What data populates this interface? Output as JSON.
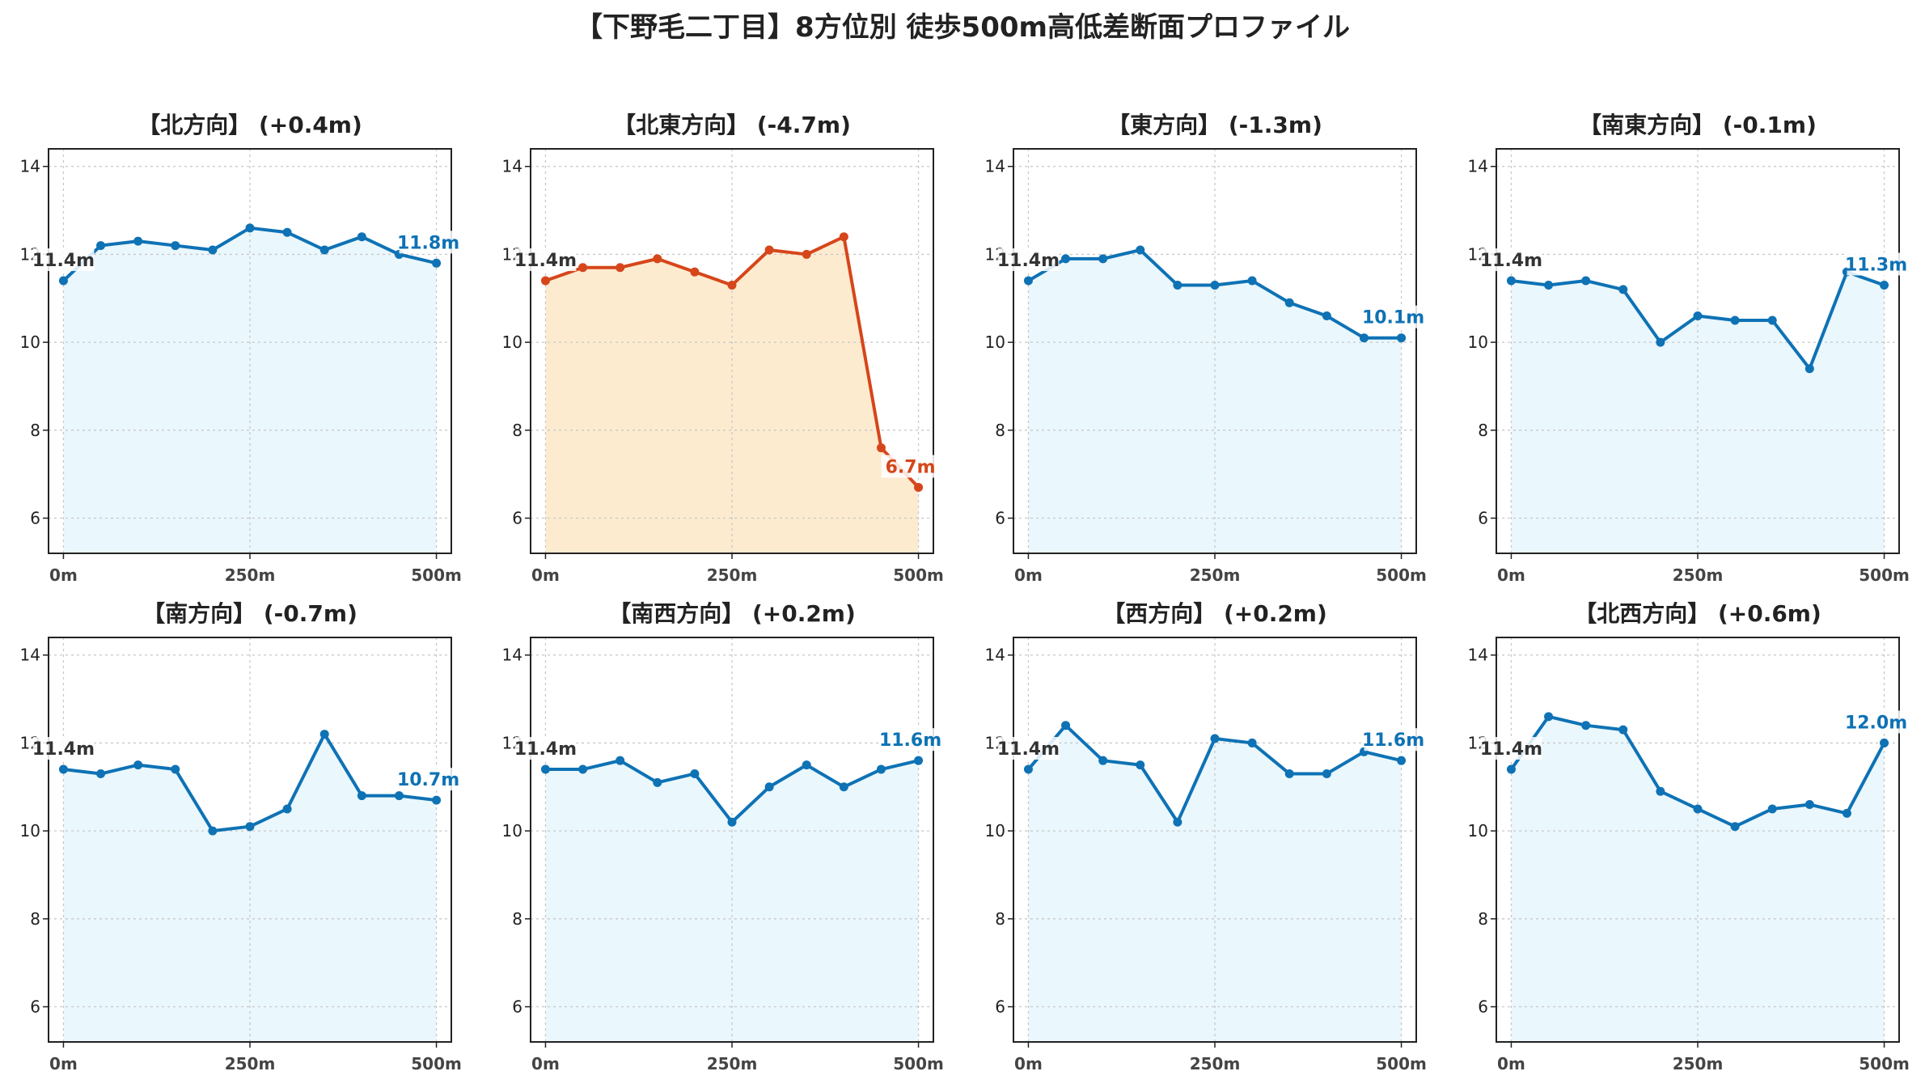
{
  "title": "【下野毛二丁目】8方位別 徒歩500m高低差断面プロファイル",
  "colors": {
    "normal_line": "#0e72b5",
    "normal_fill": "#eaf7fc",
    "highlight_line": "#d6461a",
    "highlight_fill": "#fdebd0",
    "start_label": "#333333"
  },
  "chart_data": [
    {
      "type": "area",
      "title": "【北方向】 (+0.4m)",
      "highlight": false,
      "x": [
        0,
        50,
        100,
        150,
        200,
        250,
        300,
        350,
        400,
        450,
        500
      ],
      "values": [
        11.4,
        12.2,
        12.3,
        12.2,
        12.1,
        12.6,
        12.5,
        12.1,
        12.4,
        12.0,
        11.8
      ],
      "start_label": "11.4m",
      "end_label": "11.8m",
      "xticks": [
        0,
        250,
        500
      ],
      "xtick_labels": [
        "0m",
        "250m",
        "500m"
      ],
      "yticks": [
        6,
        8,
        10,
        12,
        14
      ],
      "ytick_labels": [
        "6",
        "8",
        "10",
        "12",
        "14"
      ],
      "xlim": [
        -20,
        520
      ],
      "ylim": [
        5.2,
        14.4
      ],
      "grid": true
    },
    {
      "type": "area",
      "title": "【北東方向】 (-4.7m)",
      "highlight": true,
      "x": [
        0,
        50,
        100,
        150,
        200,
        250,
        300,
        350,
        400,
        450,
        500
      ],
      "values": [
        11.4,
        11.7,
        11.7,
        11.9,
        11.6,
        11.3,
        12.1,
        12.0,
        12.4,
        7.6,
        6.7
      ],
      "start_label": "11.4m",
      "end_label": "6.7m",
      "xticks": [
        0,
        250,
        500
      ],
      "xtick_labels": [
        "0m",
        "250m",
        "500m"
      ],
      "yticks": [
        6,
        8,
        10,
        12,
        14
      ],
      "ytick_labels": [
        "6",
        "8",
        "10",
        "12",
        "14"
      ],
      "xlim": [
        -20,
        520
      ],
      "ylim": [
        5.2,
        14.4
      ],
      "grid": true
    },
    {
      "type": "area",
      "title": "【東方向】 (-1.3m)",
      "highlight": false,
      "x": [
        0,
        50,
        100,
        150,
        200,
        250,
        300,
        350,
        400,
        450,
        500
      ],
      "values": [
        11.4,
        11.9,
        11.9,
        12.1,
        11.3,
        11.3,
        11.4,
        10.9,
        10.6,
        10.1,
        10.1
      ],
      "start_label": "11.4m",
      "end_label": "10.1m",
      "xticks": [
        0,
        250,
        500
      ],
      "xtick_labels": [
        "0m",
        "250m",
        "500m"
      ],
      "yticks": [
        6,
        8,
        10,
        12,
        14
      ],
      "ytick_labels": [
        "6",
        "8",
        "10",
        "12",
        "14"
      ],
      "xlim": [
        -20,
        520
      ],
      "ylim": [
        5.2,
        14.4
      ],
      "grid": true
    },
    {
      "type": "area",
      "title": "【南東方向】 (-0.1m)",
      "highlight": false,
      "x": [
        0,
        50,
        100,
        150,
        200,
        250,
        300,
        350,
        400,
        450,
        500
      ],
      "values": [
        11.4,
        11.3,
        11.4,
        11.2,
        10.0,
        10.6,
        10.5,
        10.5,
        9.4,
        11.6,
        11.3
      ],
      "start_label": "11.4m",
      "end_label": "11.3m",
      "xticks": [
        0,
        250,
        500
      ],
      "xtick_labels": [
        "0m",
        "250m",
        "500m"
      ],
      "yticks": [
        6,
        8,
        10,
        12,
        14
      ],
      "ytick_labels": [
        "6",
        "8",
        "10",
        "12",
        "14"
      ],
      "xlim": [
        -20,
        520
      ],
      "ylim": [
        5.2,
        14.4
      ],
      "grid": true
    },
    {
      "type": "area",
      "title": "【南方向】 (-0.7m)",
      "highlight": false,
      "x": [
        0,
        50,
        100,
        150,
        200,
        250,
        300,
        350,
        400,
        450,
        500
      ],
      "values": [
        11.4,
        11.3,
        11.5,
        11.4,
        10.0,
        10.1,
        10.5,
        12.2,
        10.8,
        10.8,
        10.7
      ],
      "start_label": "11.4m",
      "end_label": "10.7m",
      "xticks": [
        0,
        250,
        500
      ],
      "xtick_labels": [
        "0m",
        "250m",
        "500m"
      ],
      "yticks": [
        6,
        8,
        10,
        12,
        14
      ],
      "ytick_labels": [
        "6",
        "8",
        "10",
        "12",
        "14"
      ],
      "xlim": [
        -20,
        520
      ],
      "ylim": [
        5.2,
        14.4
      ],
      "grid": true
    },
    {
      "type": "area",
      "title": "【南西方向】 (+0.2m)",
      "highlight": false,
      "x": [
        0,
        50,
        100,
        150,
        200,
        250,
        300,
        350,
        400,
        450,
        500
      ],
      "values": [
        11.4,
        11.4,
        11.6,
        11.1,
        11.3,
        10.2,
        11.0,
        11.5,
        11.0,
        11.4,
        11.6
      ],
      "start_label": "11.4m",
      "end_label": "11.6m",
      "xticks": [
        0,
        250,
        500
      ],
      "xtick_labels": [
        "0m",
        "250m",
        "500m"
      ],
      "yticks": [
        6,
        8,
        10,
        12,
        14
      ],
      "ytick_labels": [
        "6",
        "8",
        "10",
        "12",
        "14"
      ],
      "xlim": [
        -20,
        520
      ],
      "ylim": [
        5.2,
        14.4
      ],
      "grid": true
    },
    {
      "type": "area",
      "title": "【西方向】 (+0.2m)",
      "highlight": false,
      "x": [
        0,
        50,
        100,
        150,
        200,
        250,
        300,
        350,
        400,
        450,
        500
      ],
      "values": [
        11.4,
        12.4,
        11.6,
        11.5,
        10.2,
        12.1,
        12.0,
        11.3,
        11.3,
        11.8,
        11.6
      ],
      "start_label": "11.4m",
      "end_label": "11.6m",
      "xticks": [
        0,
        250,
        500
      ],
      "xtick_labels": [
        "0m",
        "250m",
        "500m"
      ],
      "yticks": [
        6,
        8,
        10,
        12,
        14
      ],
      "ytick_labels": [
        "6",
        "8",
        "10",
        "12",
        "14"
      ],
      "xlim": [
        -20,
        520
      ],
      "ylim": [
        5.2,
        14.4
      ],
      "grid": true
    },
    {
      "type": "area",
      "title": "【北西方向】 (+0.6m)",
      "highlight": false,
      "x": [
        0,
        50,
        100,
        150,
        200,
        250,
        300,
        350,
        400,
        450,
        500
      ],
      "values": [
        11.4,
        12.6,
        12.4,
        12.3,
        10.9,
        10.5,
        10.1,
        10.5,
        10.6,
        10.4,
        12.0
      ],
      "start_label": "11.4m",
      "end_label": "12.0m",
      "xticks": [
        0,
        250,
        500
      ],
      "xtick_labels": [
        "0m",
        "250m",
        "500m"
      ],
      "yticks": [
        6,
        8,
        10,
        12,
        14
      ],
      "ytick_labels": [
        "6",
        "8",
        "10",
        "12",
        "14"
      ],
      "xlim": [
        -20,
        520
      ],
      "ylim": [
        5.2,
        14.4
      ],
      "grid": true
    }
  ]
}
